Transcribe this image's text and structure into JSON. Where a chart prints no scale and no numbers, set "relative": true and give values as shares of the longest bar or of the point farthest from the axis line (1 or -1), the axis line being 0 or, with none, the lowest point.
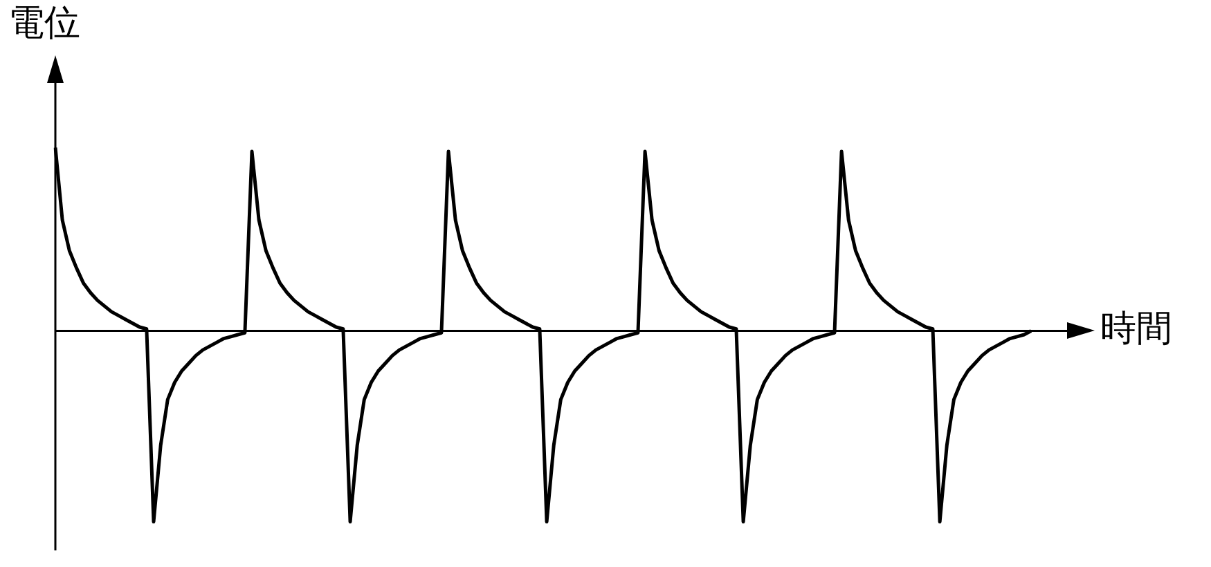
{
  "chart_data": {
    "type": "line",
    "relative": true,
    "xlabel": "時間",
    "ylabel": "電位",
    "tick_labels": false,
    "grid": false,
    "legend": false,
    "marker": "none",
    "line_style": "solid",
    "categories": [
      null,
      null,
      null,
      null,
      null,
      null,
      null,
      null,
      null,
      null,
      null,
      null,
      null,
      null,
      null,
      null,
      null,
      null,
      null,
      null,
      null,
      null,
      null,
      null,
      null,
      null,
      null,
      null,
      null,
      null,
      null,
      null,
      null,
      null,
      null,
      null,
      null,
      null,
      null,
      null,
      null,
      null,
      null,
      null,
      null,
      null,
      null,
      null,
      null,
      null,
      null,
      null,
      null,
      null,
      null,
      null,
      null,
      null,
      null,
      null,
      null,
      null,
      null,
      null,
      null,
      null,
      null,
      null,
      null,
      null,
      null,
      null,
      null,
      null,
      null,
      null,
      null,
      null,
      null,
      null,
      null,
      null,
      null,
      null,
      null,
      null,
      null,
      null,
      null,
      null,
      null,
      null,
      null,
      null,
      null,
      null,
      null,
      null,
      null,
      null,
      null,
      null,
      null,
      null,
      null,
      null,
      null,
      null,
      null,
      null,
      null,
      null,
      null,
      null,
      null,
      null,
      null,
      null,
      null,
      null,
      null,
      null,
      null,
      null,
      null,
      null,
      null,
      null,
      null,
      null,
      null,
      null,
      null,
      null,
      null,
      null,
      null,
      null,
      null,
      null
    ],
    "series": [
      {
        "color": "#000000",
        "values": [
          0.96,
          0.58,
          0.42,
          0.33,
          0.25,
          0.2,
          0.16,
          0.13,
          0.1,
          0.08,
          0.06,
          0.04,
          0.02,
          0.01,
          -1,
          -0.6,
          -0.36,
          -0.27,
          -0.21,
          -0.17,
          -0.13,
          -0.1,
          -0.08,
          -0.06,
          -0.04,
          -0.03,
          -0.02,
          -0.01,
          0.94,
          0.58,
          0.42,
          0.33,
          0.25,
          0.2,
          0.16,
          0.13,
          0.1,
          0.08,
          0.06,
          0.04,
          0.02,
          0.01,
          -1,
          -0.6,
          -0.36,
          -0.27,
          -0.21,
          -0.17,
          -0.13,
          -0.1,
          -0.08,
          -0.06,
          -0.04,
          -0.03,
          -0.02,
          -0.01,
          0.94,
          0.58,
          0.42,
          0.33,
          0.25,
          0.2,
          0.16,
          0.13,
          0.1,
          0.08,
          0.06,
          0.04,
          0.02,
          0.01,
          -1,
          -0.6,
          -0.36,
          -0.27,
          -0.21,
          -0.17,
          -0.13,
          -0.1,
          -0.08,
          -0.06,
          -0.04,
          -0.03,
          -0.02,
          -0.01,
          0.94,
          0.58,
          0.42,
          0.33,
          0.25,
          0.2,
          0.16,
          0.13,
          0.1,
          0.08,
          0.06,
          0.04,
          0.02,
          0.01,
          -1,
          -0.6,
          -0.36,
          -0.27,
          -0.21,
          -0.17,
          -0.13,
          -0.1,
          -0.08,
          -0.06,
          -0.04,
          -0.03,
          -0.02,
          -0.01,
          0.94,
          0.58,
          0.42,
          0.33,
          0.25,
          0.2,
          0.16,
          0.13,
          0.1,
          0.08,
          0.06,
          0.04,
          0.02,
          0.01,
          -1,
          -0.6,
          -0.36,
          -0.27,
          -0.21,
          -0.17,
          -0.13,
          -0.1,
          -0.08,
          -0.06,
          -0.04,
          -0.03,
          -0.02,
          0
        ]
      }
    ]
  }
}
